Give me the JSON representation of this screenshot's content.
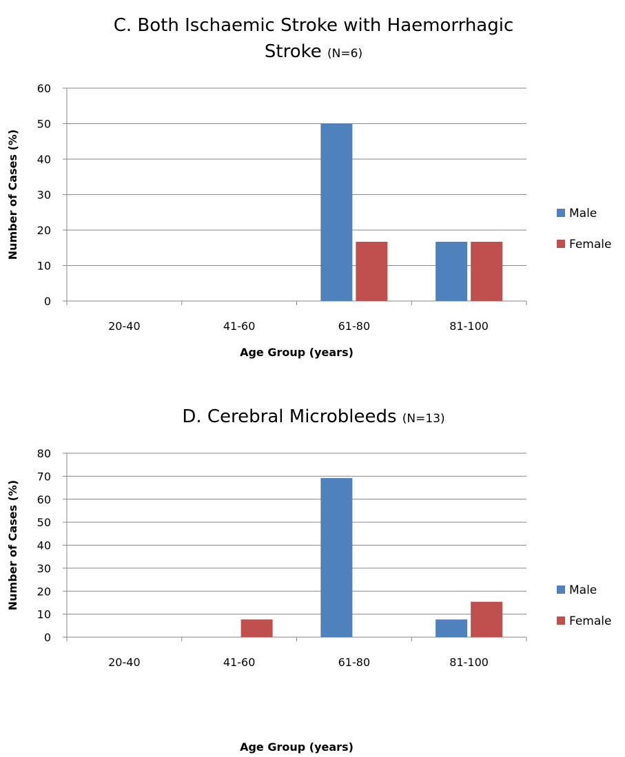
{
  "chart_data": [
    {
      "type": "bar",
      "title": "C. Both Ischaemic Stroke with Haemorrhagic",
      "title_line2": "Stroke",
      "title_note": "(N=6)",
      "xlabel": "Age Group (years)",
      "ylabel": "Number of Cases (%)",
      "categories": [
        "20-40",
        "41-60",
        "61-80",
        "81-100"
      ],
      "ylim": [
        0,
        60
      ],
      "yticks": [
        "0",
        "10",
        "20",
        "30",
        "40",
        "50",
        "60"
      ],
      "grid": true,
      "legend_position": "right",
      "series": [
        {
          "name": "Male",
          "color": "#4f81bd",
          "values": [
            0,
            0,
            50,
            16.7
          ]
        },
        {
          "name": "Female",
          "color": "#c0504d",
          "values": [
            0,
            0,
            16.7,
            16.7
          ]
        }
      ]
    },
    {
      "type": "bar",
      "title": "D. Cerebral Microbleeds",
      "title_line2": "",
      "title_note": "(N=13)",
      "xlabel": "Age Group (years)",
      "ylabel": "Number of Cases (%)",
      "categories": [
        "20-40",
        "41-60",
        "61-80",
        "81-100"
      ],
      "ylim": [
        0,
        80
      ],
      "yticks": [
        "0",
        "10",
        "20",
        "30",
        "40",
        "50",
        "60",
        "70",
        "80"
      ],
      "grid": true,
      "legend_position": "right",
      "series": [
        {
          "name": "Male",
          "color": "#4f81bd",
          "values": [
            0,
            0,
            69.2,
            7.7
          ]
        },
        {
          "name": "Female",
          "color": "#c0504d",
          "values": [
            0,
            7.7,
            0,
            15.4
          ]
        }
      ]
    }
  ]
}
